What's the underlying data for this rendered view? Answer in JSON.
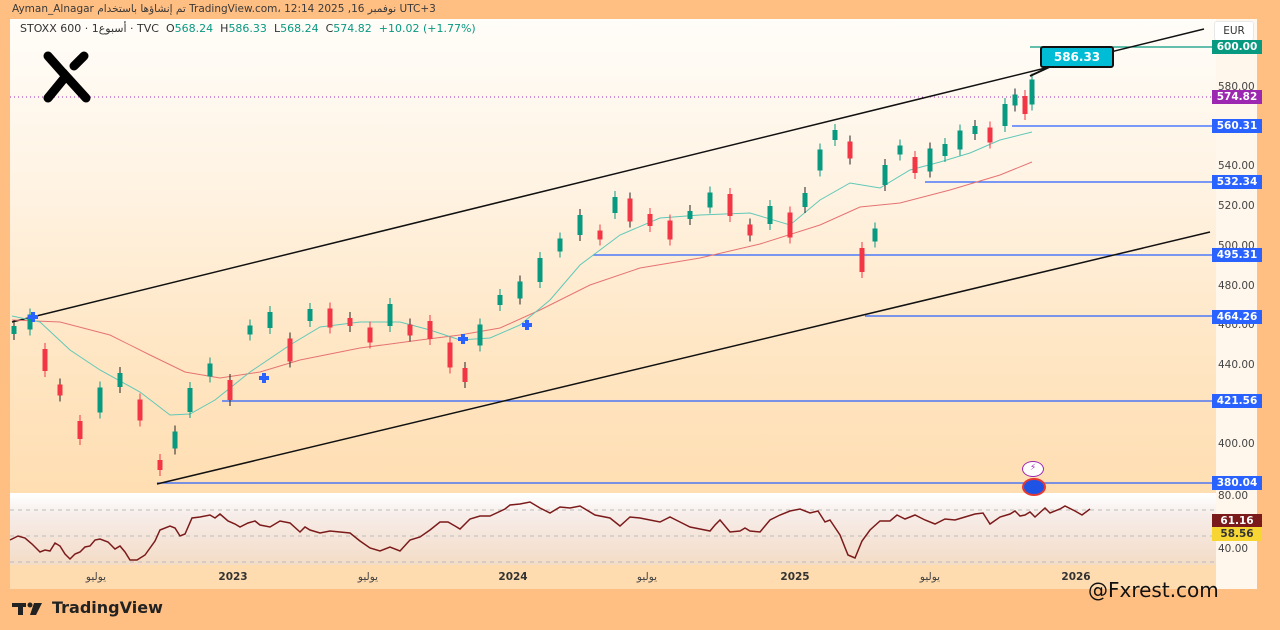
{
  "attribution": "Ayman_Alnagar تم إنشاؤها باستخدام TradingView.com، 12:14 2025 ,16 نوفمبر UTC+3",
  "header": {
    "symbol": "STOXX 600 · 1أسبوع · TVC",
    "open_label": "O",
    "open": "568.24",
    "high_label": "H",
    "high": "586.33",
    "low_label": "L",
    "low": "568.24",
    "close_label": "C",
    "close": "574.82",
    "change": "+10.02 (+1.77%)"
  },
  "currency": "EUR",
  "callout": "586.33",
  "price_axis": {
    "ticks": [
      "580.00",
      "540.00",
      "520.00",
      "500.00",
      "480.00",
      "460.00",
      "440.00",
      "400.00"
    ],
    "badges": [
      {
        "value": "600.00",
        "color": "#089981"
      },
      {
        "value": "574.82",
        "color": "#9c27b0"
      },
      {
        "value": "560.31",
        "color": "#2962ff"
      },
      {
        "value": "532.34",
        "color": "#2962ff"
      },
      {
        "value": "495.31",
        "color": "#2962ff"
      },
      {
        "value": "464.26",
        "color": "#2962ff"
      },
      {
        "value": "421.56",
        "color": "#2962ff"
      },
      {
        "value": "380.04",
        "color": "#2962ff"
      }
    ]
  },
  "rsi_axis": {
    "ticks": [
      "80.00",
      "40.00"
    ],
    "badges": [
      {
        "value": "61.16",
        "color": "#7b1a1a"
      },
      {
        "value": "58.56",
        "color": "#f7d633"
      }
    ]
  },
  "time_axis": [
    "يوليو",
    "2023",
    "يوليو",
    "2024",
    "يوليو",
    "2025",
    "يوليو",
    "2026"
  ],
  "branding": {
    "tv": "TradingView",
    "watermark": "@Fxrest.com"
  },
  "colors": {
    "up": "#089981",
    "down": "#f23645",
    "ma_fast": "#5fc8b8",
    "ma_slow": "#e57373",
    "hline": "#2962ff",
    "channel": "#111111",
    "rsi": "#7b1a1a"
  },
  "chart_data": {
    "type": "candlestick",
    "title": "STOXX 600 · 1W · TVC",
    "ylabel": "EUR",
    "ylim": [
      370,
      610
    ],
    "x": [
      "2022-05",
      "2022-07",
      "2022-10",
      "2023-01",
      "2023-04",
      "2023-07",
      "2023-10",
      "2024-01",
      "2024-04",
      "2024-07",
      "2024-10",
      "2025-01",
      "2025-04",
      "2025-07",
      "2025-10",
      "2025-11"
    ],
    "close_approx": [
      455,
      410,
      385,
      440,
      462,
      455,
      430,
      475,
      515,
      512,
      505,
      545,
      495,
      545,
      560,
      574.82
    ],
    "last_bar": {
      "open": 568.24,
      "high": 586.33,
      "low": 568.24,
      "close": 574.82,
      "change": 10.02,
      "change_pct": 1.77
    },
    "horizontal_levels": [
      600.0,
      560.31,
      532.34,
      495.31,
      464.26,
      421.56,
      380.04
    ],
    "channel": {
      "upper": "rising line from ~462 (2022) to ~610 (2026)",
      "lower": "rising line from ~380 (2022-10) to ~505 (2026)"
    },
    "moving_averages": [
      "fast MA (teal)",
      "slow MA (salmon)"
    ],
    "rsi": {
      "current": 61.16,
      "signal": 58.56,
      "levels": [
        80,
        40
      ]
    }
  }
}
